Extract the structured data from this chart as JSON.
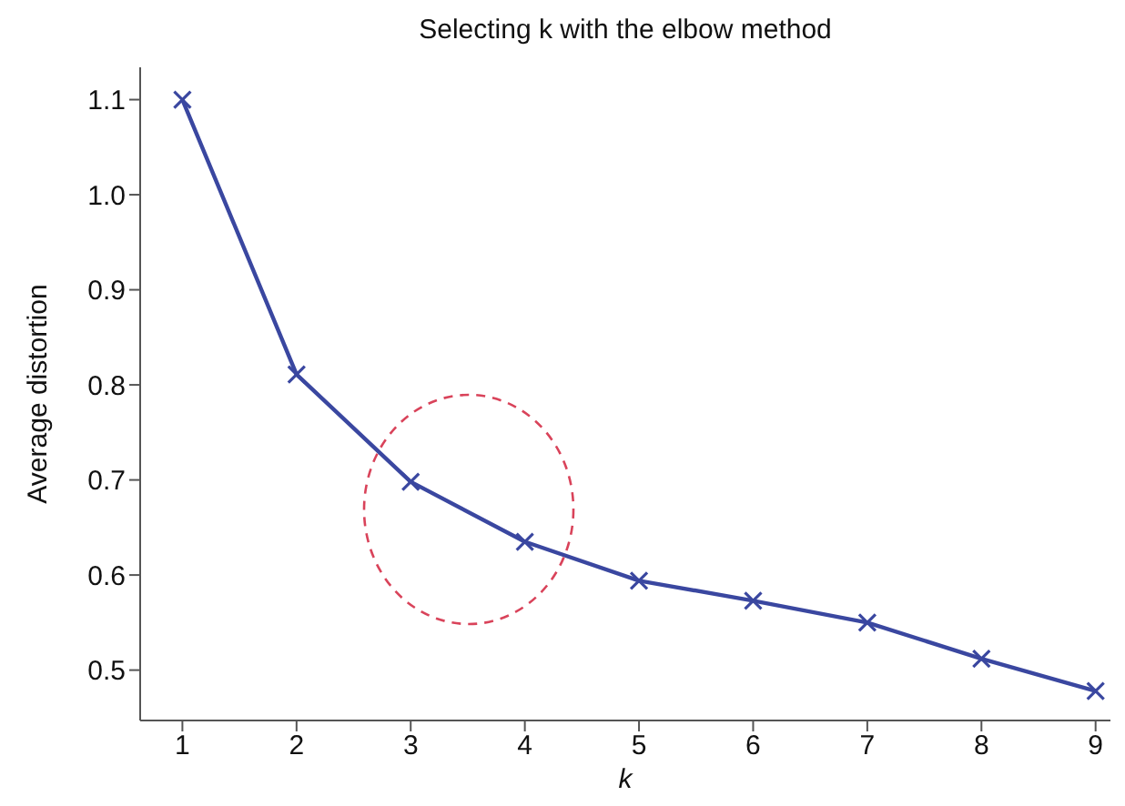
{
  "chart_data": {
    "type": "line",
    "title": "Selecting k with the elbow method",
    "xlabel": "k",
    "ylabel": "Average distortion",
    "x": [
      1,
      2,
      3,
      4,
      5,
      6,
      7,
      8,
      9
    ],
    "series": [
      {
        "color": "#3a47a0",
        "values": [
          1.1,
          0.811,
          0.698,
          0.635,
          0.594,
          0.573,
          0.55,
          0.512,
          0.478
        ]
      }
    ],
    "xlim": [
      0.63,
      9.13
    ],
    "xticks": [
      1,
      2,
      3,
      4,
      5,
      6,
      7,
      8,
      9
    ],
    "ylim": [
      0.447,
      1.134
    ],
    "yticks": [
      0.5,
      0.6,
      0.7,
      0.8,
      0.9,
      {
        "value": 1,
        "label": "1.0"
      },
      1.1
    ],
    "marker": "cross",
    "line_style": "solid",
    "grid": false,
    "legend": false
  }
}
